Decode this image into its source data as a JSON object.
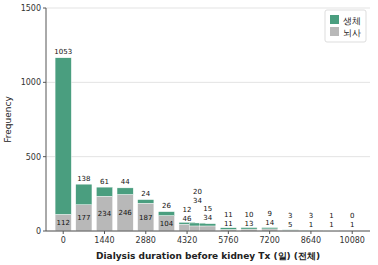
{
  "chart_data": {
    "type": "bar",
    "stacked": true,
    "x": [
      0,
      720,
      1440,
      2160,
      2880,
      3600,
      4320,
      4680,
      5040,
      5760,
      6480,
      7200,
      7920,
      8640,
      9360,
      10080
    ],
    "series": [
      {
        "name": "뇌사",
        "color": "#b8b8b8",
        "values": [
          112,
          177,
          234,
          246,
          187,
          104,
          46,
          34,
          34,
          11,
          13,
          14,
          5,
          1,
          1,
          1
        ]
      },
      {
        "name": "생체",
        "color": "#4a9e7f",
        "values": [
          1053,
          138,
          61,
          44,
          24,
          26,
          12,
          20,
          15,
          11,
          10,
          9,
          3,
          3,
          1,
          0
        ]
      }
    ],
    "xlabel": "Dialysis duration before kidney Tx (일) (전체)",
    "ylabel": "Frequency",
    "xlim": [
      -600,
      10700
    ],
    "ylim": [
      0,
      1500
    ],
    "xticks": [
      0,
      1440,
      2880,
      4320,
      5760,
      7200,
      8640,
      10080
    ],
    "yticks": [
      0,
      500,
      1000,
      1500
    ],
    "grid": true,
    "legend": "upper right",
    "data_labels": true
  }
}
